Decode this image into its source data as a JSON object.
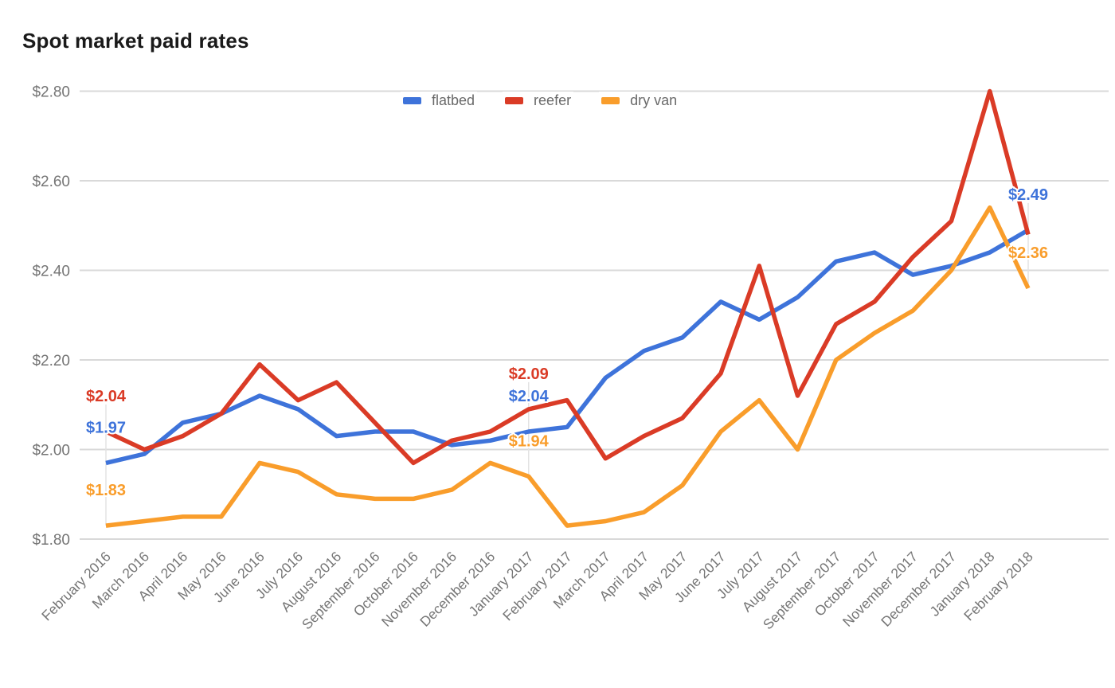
{
  "title": "Spot market paid rates",
  "legend": {
    "position": "top",
    "items": [
      {
        "label": "flatbed",
        "color": "#3E73DA"
      },
      {
        "label": "reefer",
        "color": "#DA3B26"
      },
      {
        "label": "dry van",
        "color": "#F99D2B"
      }
    ]
  },
  "chart_data": {
    "type": "line",
    "title": "Spot market paid rates",
    "categories": [
      "February 2016",
      "March 2016",
      "April 2016",
      "May 2016",
      "June 2016",
      "July 2016",
      "August 2016",
      "September 2016",
      "October 2016",
      "November 2016",
      "December 2016",
      "January 2017",
      "February 2017",
      "March 2017",
      "April 2017",
      "May 2017",
      "June 2017",
      "July 2017",
      "August 2017",
      "September 2017",
      "October 2017",
      "November 2017",
      "December 2017",
      "January 2018",
      "February 2018"
    ],
    "series": [
      {
        "name": "flatbed",
        "color": "#3E73DA",
        "values": [
          1.97,
          1.99,
          2.06,
          2.08,
          2.12,
          2.09,
          2.03,
          2.04,
          2.04,
          2.01,
          2.02,
          2.04,
          2.05,
          2.16,
          2.22,
          2.25,
          2.33,
          2.29,
          2.34,
          2.42,
          2.44,
          2.39,
          2.41,
          2.44,
          2.49
        ]
      },
      {
        "name": "reefer",
        "color": "#DA3B26",
        "values": [
          2.04,
          2.0,
          2.03,
          2.08,
          2.19,
          2.11,
          2.15,
          2.06,
          1.97,
          2.02,
          2.04,
          2.09,
          2.11,
          1.98,
          2.03,
          2.07,
          2.17,
          2.41,
          2.12,
          2.28,
          2.33,
          2.43,
          2.51,
          2.8,
          2.48
        ]
      },
      {
        "name": "dry van",
        "color": "#F99D2B",
        "values": [
          1.83,
          1.84,
          1.85,
          1.85,
          1.97,
          1.95,
          1.9,
          1.89,
          1.89,
          1.91,
          1.97,
          1.94,
          1.83,
          1.84,
          1.86,
          1.92,
          2.04,
          2.11,
          2.0,
          2.2,
          2.26,
          2.31,
          2.4,
          2.54,
          2.36
        ]
      }
    ],
    "xlabel": "",
    "ylabel": "",
    "ylim": [
      1.8,
      2.8
    ],
    "yticks": [
      {
        "value": 2.8,
        "label": "$2.80"
      },
      {
        "value": 2.6,
        "label": "$2.60"
      },
      {
        "value": 2.4,
        "label": "$2.40"
      },
      {
        "value": 2.2,
        "label": "$2.20"
      },
      {
        "value": 2.0,
        "label": "$2.00"
      },
      {
        "value": 1.8,
        "label": "$1.80"
      }
    ],
    "grid": true,
    "legend_position": "top",
    "annotations": [
      {
        "series": "reefer",
        "category": "February 2016",
        "label": "$2.04"
      },
      {
        "series": "flatbed",
        "category": "February 2016",
        "label": "$1.97"
      },
      {
        "series": "dry van",
        "category": "February 2016",
        "label": "$1.83"
      },
      {
        "series": "reefer",
        "category": "January 2017",
        "label": "$2.09"
      },
      {
        "series": "flatbed",
        "category": "January 2017",
        "label": "$2.04"
      },
      {
        "series": "dry van",
        "category": "January 2017",
        "label": "$1.94"
      },
      {
        "series": "flatbed",
        "category": "February 2018",
        "label": "$2.49"
      },
      {
        "series": "dry van",
        "category": "February 2018",
        "label": "$2.36"
      }
    ]
  }
}
